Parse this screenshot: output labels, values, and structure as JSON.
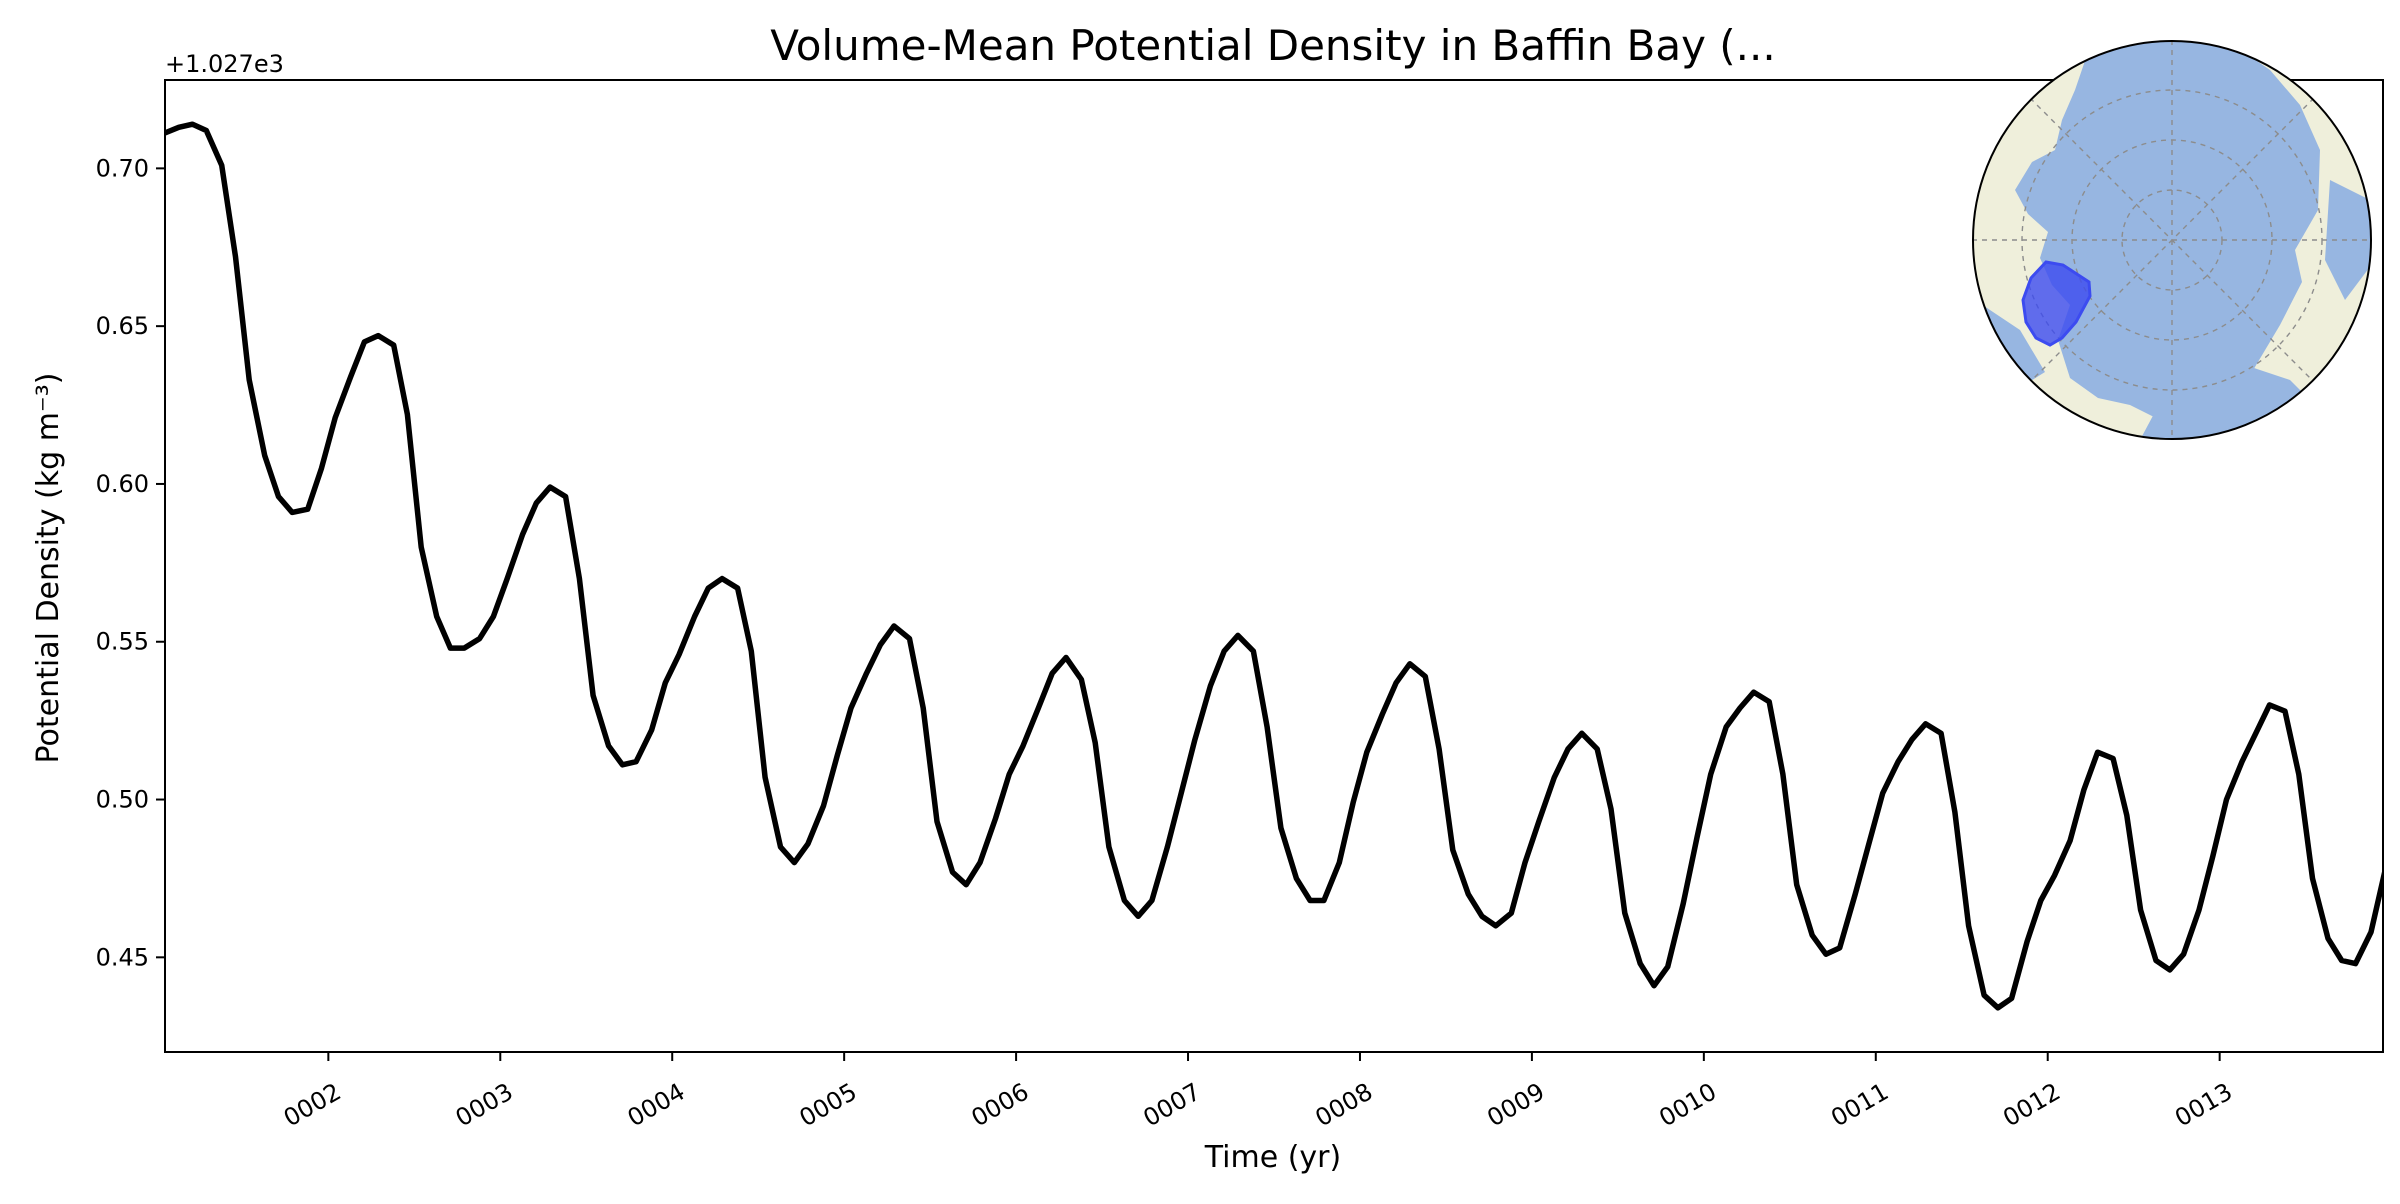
{
  "chart_data": {
    "type": "line",
    "title": "Volume-Mean Potential Density in Baffin Bay (...",
    "xlabel": "Time (yr)",
    "ylabel": "Potential Density (kg m⁻³)",
    "y_offset_label": "+1.027e3",
    "xlim": [
      1.05,
      13.95
    ],
    "ylim": [
      0.42,
      0.728
    ],
    "xticks": [
      {
        "value": 2,
        "label": "0002"
      },
      {
        "value": 3,
        "label": "0003"
      },
      {
        "value": 4,
        "label": "0004"
      },
      {
        "value": 5,
        "label": "0005"
      },
      {
        "value": 6,
        "label": "0006"
      },
      {
        "value": 7,
        "label": "0007"
      },
      {
        "value": 8,
        "label": "0008"
      },
      {
        "value": 9,
        "label": "0009"
      },
      {
        "value": 10,
        "label": "0010"
      },
      {
        "value": 11,
        "label": "0011"
      },
      {
        "value": 12,
        "label": "0012"
      },
      {
        "value": 13,
        "label": "0013"
      }
    ],
    "yticks": [
      {
        "value": 0.45,
        "label": "0.45"
      },
      {
        "value": 0.5,
        "label": "0.50"
      },
      {
        "value": 0.55,
        "label": "0.55"
      },
      {
        "value": 0.6,
        "label": "0.60"
      },
      {
        "value": 0.65,
        "label": "0.65"
      },
      {
        "value": 0.7,
        "label": "0.70"
      }
    ],
    "grid": false,
    "legend": "none",
    "line_color": "#000000",
    "series": [
      {
        "x": [
          1.04,
          1.13,
          1.21,
          1.29,
          1.38,
          1.46,
          1.54,
          1.63,
          1.71,
          1.79,
          1.88,
          1.96,
          2.04,
          2.13,
          2.21,
          2.29,
          2.38,
          2.46,
          2.54,
          2.63,
          2.71,
          2.79,
          2.88,
          2.96,
          3.04,
          3.13,
          3.21,
          3.29,
          3.38,
          3.46,
          3.54,
          3.63,
          3.71,
          3.79,
          3.88,
          3.96,
          4.04,
          4.13,
          4.21,
          4.29,
          4.38,
          4.46,
          4.54,
          4.63,
          4.71,
          4.79,
          4.88,
          4.96,
          5.04,
          5.13,
          5.21,
          5.29,
          5.38,
          5.46,
          5.54,
          5.63,
          5.71,
          5.79,
          5.88,
          5.96,
          6.04,
          6.13,
          6.21,
          6.29,
          6.38,
          6.46,
          6.54,
          6.63,
          6.71,
          6.79,
          6.88,
          6.96,
          7.04,
          7.13,
          7.21,
          7.29,
          7.38,
          7.46,
          7.54,
          7.63,
          7.71,
          7.79,
          7.88,
          7.96,
          8.04,
          8.13,
          8.21,
          8.29,
          8.38,
          8.46,
          8.54,
          8.63,
          8.71,
          8.79,
          8.88,
          8.96,
          9.04,
          9.13,
          9.21,
          9.29,
          9.38,
          9.46,
          9.54,
          9.63,
          9.71,
          9.79,
          9.88,
          9.96,
          10.04,
          10.13,
          10.21,
          10.29,
          10.38,
          10.46,
          10.54,
          10.63,
          10.71,
          10.79,
          10.88,
          10.96,
          11.04,
          11.13,
          11.21,
          11.29,
          11.38,
          11.46,
          11.54,
          11.63,
          11.71,
          11.79,
          11.88,
          11.96,
          12.04,
          12.13,
          12.21,
          12.29,
          12.38,
          12.46,
          12.54,
          12.63,
          12.71,
          12.79,
          12.88,
          12.96,
          13.04,
          13.13,
          13.21,
          13.29,
          13.38,
          13.46,
          13.54,
          13.63,
          13.71,
          13.79,
          13.88,
          13.96
        ],
        "values": [
          0.711,
          0.713,
          0.714,
          0.712,
          0.701,
          0.672,
          0.633,
          0.609,
          0.596,
          0.591,
          0.592,
          0.605,
          0.621,
          0.634,
          0.645,
          0.647,
          0.644,
          0.622,
          0.58,
          0.558,
          0.548,
          0.548,
          0.551,
          0.558,
          0.57,
          0.584,
          0.594,
          0.599,
          0.596,
          0.57,
          0.533,
          0.517,
          0.511,
          0.512,
          0.522,
          0.537,
          0.546,
          0.558,
          0.567,
          0.57,
          0.567,
          0.547,
          0.507,
          0.485,
          0.48,
          0.486,
          0.498,
          0.514,
          0.529,
          0.54,
          0.549,
          0.555,
          0.551,
          0.529,
          0.493,
          0.477,
          0.473,
          0.48,
          0.494,
          0.508,
          0.517,
          0.529,
          0.54,
          0.545,
          0.538,
          0.518,
          0.485,
          0.468,
          0.463,
          0.468,
          0.485,
          0.502,
          0.519,
          0.536,
          0.547,
          0.552,
          0.547,
          0.523,
          0.491,
          0.475,
          0.468,
          0.468,
          0.48,
          0.499,
          0.515,
          0.527,
          0.537,
          0.543,
          0.539,
          0.516,
          0.484,
          0.47,
          0.463,
          0.46,
          0.464,
          0.48,
          0.493,
          0.507,
          0.516,
          0.521,
          0.516,
          0.497,
          0.464,
          0.448,
          0.441,
          0.447,
          0.467,
          0.488,
          0.508,
          0.523,
          0.529,
          0.534,
          0.531,
          0.508,
          0.473,
          0.457,
          0.451,
          0.453,
          0.47,
          0.486,
          0.502,
          0.512,
          0.519,
          0.524,
          0.521,
          0.496,
          0.46,
          0.438,
          0.434,
          0.437,
          0.455,
          0.468,
          0.476,
          0.487,
          0.503,
          0.515,
          0.513,
          0.495,
          0.465,
          0.449,
          0.446,
          0.451,
          0.465,
          0.482,
          0.5,
          0.512,
          0.521,
          0.53,
          0.528,
          0.508,
          0.475,
          0.456,
          0.449,
          0.448,
          0.458,
          0.477
        ]
      }
    ]
  },
  "inset_map": {
    "ocean_color": "#97b6e1",
    "land_color": "#efefdb",
    "region_color": "#3c4bf0"
  }
}
